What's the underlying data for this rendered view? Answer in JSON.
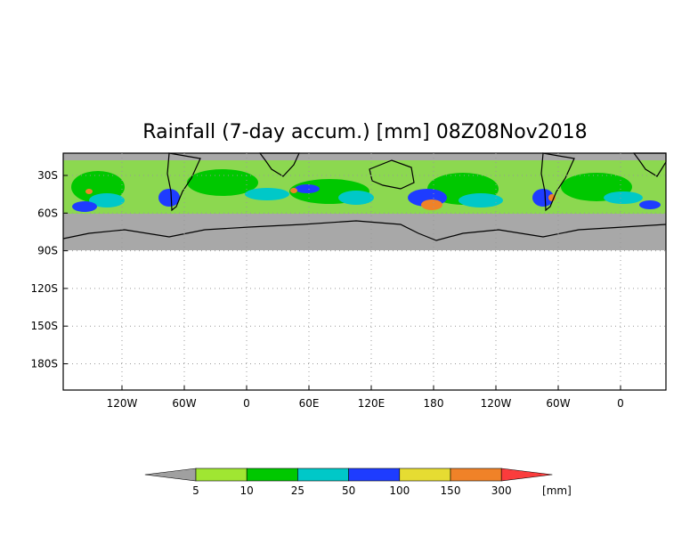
{
  "title": "Rainfall (7-day accum.) [mm] 08Z08Nov2018",
  "map": {
    "lat_ticks": [
      "30S",
      "60S",
      "90S",
      "120S",
      "150S",
      "180S"
    ],
    "lon_ticks": [
      "120W",
      "60W",
      "0",
      "60E",
      "120E",
      "180",
      "120W",
      "60W",
      "0"
    ]
  },
  "colorbar": {
    "levels": [
      5,
      10,
      25,
      50,
      100,
      150,
      300
    ],
    "unit": "[mm]",
    "colors": [
      "#a0a0a0",
      "#a0e632",
      "#00c800",
      "#00c8c8",
      "#1e3cff",
      "#e6dc32",
      "#f08228",
      "#fa3c3c"
    ]
  }
}
